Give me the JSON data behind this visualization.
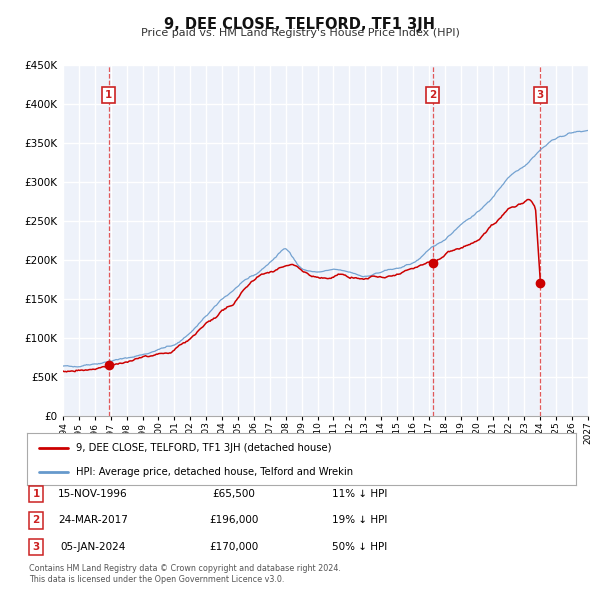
{
  "title": "9, DEE CLOSE, TELFORD, TF1 3JH",
  "subtitle": "Price paid vs. HM Land Registry's House Price Index (HPI)",
  "legend_line1": "9, DEE CLOSE, TELFORD, TF1 3JH (detached house)",
  "legend_line2": "HPI: Average price, detached house, Telford and Wrekin",
  "footer1": "Contains HM Land Registry data © Crown copyright and database right 2024.",
  "footer2": "This data is licensed under the Open Government Licence v3.0.",
  "transactions": [
    {
      "num": 1,
      "date": "15-NOV-1996",
      "x": 1996.87,
      "price": 65500,
      "pct": "11%",
      "dir": "↓"
    },
    {
      "num": 2,
      "date": "24-MAR-2017",
      "x": 2017.23,
      "price": 196000,
      "pct": "19%",
      "dir": "↓"
    },
    {
      "num": 3,
      "date": "05-JAN-2024",
      "x": 2024.01,
      "price": 170000,
      "pct": "50%",
      "dir": "↓"
    }
  ],
  "vline_color": "#e05050",
  "sold_dot_color": "#cc0000",
  "hpi_line_color": "#6699cc",
  "price_line_color": "#cc0000",
  "plot_bg": "#eef2fa",
  "grid_color": "#ffffff",
  "xmin": 1994,
  "xmax": 2027,
  "ymin": 0,
  "ymax": 450000,
  "yticks": [
    0,
    50000,
    100000,
    150000,
    200000,
    250000,
    300000,
    350000,
    400000,
    450000
  ],
  "hpi_kx": [
    1994,
    1995,
    1996,
    1997,
    1998,
    1999,
    2000,
    2001,
    2002,
    2003,
    2004,
    2005,
    2006,
    2007,
    2008,
    2009,
    2010,
    2011,
    2012,
    2013,
    2014,
    2015,
    2016,
    2017,
    2018,
    2019,
    2020,
    2021,
    2022,
    2023,
    2024,
    2025,
    2026,
    2027
  ],
  "hpi_ky": [
    63000,
    65000,
    67500,
    70500,
    74000,
    79000,
    85000,
    91000,
    107000,
    128000,
    150000,
    167000,
    180000,
    197000,
    217000,
    187000,
    184000,
    187000,
    184000,
    179000,
    184000,
    189000,
    196000,
    212000,
    227000,
    247000,
    260000,
    280000,
    308000,
    322000,
    342000,
    357000,
    363000,
    366000
  ],
  "price_kx": [
    1994.0,
    1995.0,
    1996.0,
    1996.87,
    1997.5,
    1999.0,
    2001.0,
    2003.0,
    2004.5,
    2006.0,
    2007.5,
    2008.5,
    2009.5,
    2010.5,
    2011.5,
    2012.5,
    2013.5,
    2014.5,
    2015.5,
    2016.5,
    2017.0,
    2017.23,
    2018.0,
    2019.0,
    2020.0,
    2021.0,
    2022.0,
    2022.8,
    2023.3,
    2023.7,
    2024.01
  ],
  "price_ky": [
    57000,
    59000,
    62500,
    65500,
    68000,
    73000,
    84000,
    119000,
    142000,
    173000,
    190000,
    197000,
    179000,
    177000,
    181000,
    179000,
    177000,
    181000,
    186000,
    191000,
    198000,
    196000,
    209000,
    216000,
    226000,
    243000,
    266000,
    272000,
    278000,
    265000,
    170000
  ]
}
